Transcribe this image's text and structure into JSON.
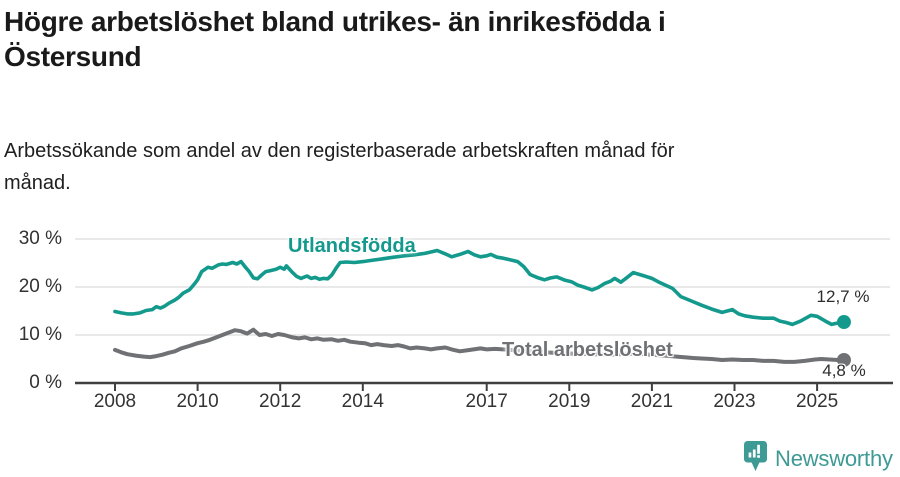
{
  "header": {
    "title": "Högre arbetslöshet bland utrikes- än inrikesfödda i Östersund",
    "subtitle": "Arbetssökande som andel av den registerbaserade arbetskraften månad för månad."
  },
  "chart_data": {
    "type": "line",
    "title": "Högre arbetslöshet bland utrikes- än inrikesfödda i Östersund",
    "subtitle": "Arbetssökande som andel av den registerbaserade arbetskraften månad för månad.",
    "xlabel": "",
    "ylabel": "",
    "unit": "%",
    "grid": true,
    "legend_position": "inline-labels",
    "x_axis": {
      "ticks": [
        2008,
        2010,
        2012,
        2014,
        2017,
        2019,
        2021,
        2023,
        2025
      ]
    },
    "y_axis": {
      "ticks": [
        0,
        10,
        20,
        30
      ],
      "suffix": " %",
      "range": [
        0,
        30
      ]
    },
    "colors": {
      "axis": "#3f3f3f",
      "grid": "#dcdcdc",
      "tick_text": "#333333"
    },
    "series": [
      {
        "name": "Utlandsfödda",
        "color": "#149a8d",
        "end_label": "12,7 %",
        "end_value": 12.7,
        "points": [
          [
            2008.0,
            14.9
          ],
          [
            2008.15,
            14.6
          ],
          [
            2008.3,
            14.4
          ],
          [
            2008.45,
            14.4
          ],
          [
            2008.6,
            14.6
          ],
          [
            2008.75,
            15.1
          ],
          [
            2008.9,
            15.3
          ],
          [
            2009.0,
            15.9
          ],
          [
            2009.1,
            15.6
          ],
          [
            2009.2,
            16.0
          ],
          [
            2009.3,
            16.6
          ],
          [
            2009.45,
            17.3
          ],
          [
            2009.55,
            17.9
          ],
          [
            2009.65,
            18.7
          ],
          [
            2009.8,
            19.4
          ],
          [
            2009.9,
            20.4
          ],
          [
            2010.0,
            21.5
          ],
          [
            2010.1,
            23.2
          ],
          [
            2010.25,
            24.1
          ],
          [
            2010.35,
            23.9
          ],
          [
            2010.5,
            24.6
          ],
          [
            2010.6,
            24.8
          ],
          [
            2010.7,
            24.7
          ],
          [
            2010.85,
            25.1
          ],
          [
            2010.95,
            24.8
          ],
          [
            2011.05,
            25.3
          ],
          [
            2011.15,
            24.2
          ],
          [
            2011.25,
            23.2
          ],
          [
            2011.35,
            21.9
          ],
          [
            2011.45,
            21.7
          ],
          [
            2011.55,
            22.5
          ],
          [
            2011.65,
            23.2
          ],
          [
            2011.75,
            23.4
          ],
          [
            2011.9,
            23.7
          ],
          [
            2012.0,
            24.1
          ],
          [
            2012.1,
            23.7
          ],
          [
            2012.15,
            24.4
          ],
          [
            2012.3,
            23.0
          ],
          [
            2012.4,
            22.2
          ],
          [
            2012.5,
            21.8
          ],
          [
            2012.65,
            22.3
          ],
          [
            2012.75,
            21.8
          ],
          [
            2012.85,
            22.0
          ],
          [
            2012.95,
            21.6
          ],
          [
            2013.05,
            21.8
          ],
          [
            2013.15,
            21.7
          ],
          [
            2013.25,
            22.5
          ],
          [
            2013.35,
            23.9
          ],
          [
            2013.45,
            25.1
          ],
          [
            2013.6,
            25.2
          ],
          [
            2013.8,
            25.1
          ],
          [
            2014.0,
            25.3
          ],
          [
            2014.25,
            25.6
          ],
          [
            2014.5,
            25.9
          ],
          [
            2014.75,
            26.2
          ],
          [
            2015.0,
            26.5
          ],
          [
            2015.25,
            26.7
          ],
          [
            2015.5,
            27.0
          ],
          [
            2015.7,
            27.4
          ],
          [
            2015.8,
            27.6
          ],
          [
            2016.0,
            26.9
          ],
          [
            2016.15,
            26.3
          ],
          [
            2016.35,
            26.8
          ],
          [
            2016.55,
            27.4
          ],
          [
            2016.7,
            26.7
          ],
          [
            2016.85,
            26.3
          ],
          [
            2017.0,
            26.5
          ],
          [
            2017.1,
            26.8
          ],
          [
            2017.25,
            26.2
          ],
          [
            2017.4,
            26.0
          ],
          [
            2017.6,
            25.6
          ],
          [
            2017.75,
            25.3
          ],
          [
            2017.9,
            24.2
          ],
          [
            2018.05,
            22.6
          ],
          [
            2018.25,
            21.9
          ],
          [
            2018.4,
            21.5
          ],
          [
            2018.55,
            21.9
          ],
          [
            2018.7,
            22.1
          ],
          [
            2018.9,
            21.4
          ],
          [
            2019.05,
            21.1
          ],
          [
            2019.2,
            20.4
          ],
          [
            2019.35,
            20.0
          ],
          [
            2019.55,
            19.4
          ],
          [
            2019.7,
            19.9
          ],
          [
            2019.85,
            20.7
          ],
          [
            2020.0,
            21.2
          ],
          [
            2020.1,
            21.8
          ],
          [
            2020.25,
            21.0
          ],
          [
            2020.4,
            22.0
          ],
          [
            2020.55,
            23.0
          ],
          [
            2020.7,
            22.6
          ],
          [
            2020.85,
            22.2
          ],
          [
            2021.0,
            21.8
          ],
          [
            2021.15,
            21.1
          ],
          [
            2021.3,
            20.5
          ],
          [
            2021.5,
            19.7
          ],
          [
            2021.7,
            18.0
          ],
          [
            2021.95,
            17.1
          ],
          [
            2022.2,
            16.2
          ],
          [
            2022.45,
            15.4
          ],
          [
            2022.7,
            14.7
          ],
          [
            2022.95,
            15.3
          ],
          [
            2023.1,
            14.4
          ],
          [
            2023.25,
            14.0
          ],
          [
            2023.45,
            13.7
          ],
          [
            2023.7,
            13.5
          ],
          [
            2023.95,
            13.5
          ],
          [
            2024.1,
            12.9
          ],
          [
            2024.25,
            12.6
          ],
          [
            2024.4,
            12.2
          ],
          [
            2024.6,
            12.9
          ],
          [
            2024.85,
            14.1
          ],
          [
            2025.0,
            13.9
          ],
          [
            2025.2,
            12.9
          ],
          [
            2025.35,
            12.2
          ],
          [
            2025.5,
            12.5
          ],
          [
            2025.65,
            12.7
          ]
        ]
      },
      {
        "name": "Total arbetslöshet",
        "color": "#707175",
        "end_label": "4,8 %",
        "end_value": 4.8,
        "points": [
          [
            2008.0,
            6.9
          ],
          [
            2008.15,
            6.4
          ],
          [
            2008.3,
            6.0
          ],
          [
            2008.5,
            5.7
          ],
          [
            2008.7,
            5.5
          ],
          [
            2008.85,
            5.4
          ],
          [
            2009.0,
            5.6
          ],
          [
            2009.15,
            5.9
          ],
          [
            2009.3,
            6.3
          ],
          [
            2009.45,
            6.6
          ],
          [
            2009.6,
            7.2
          ],
          [
            2009.8,
            7.7
          ],
          [
            2010.0,
            8.3
          ],
          [
            2010.15,
            8.6
          ],
          [
            2010.3,
            9.0
          ],
          [
            2010.45,
            9.5
          ],
          [
            2010.6,
            10.0
          ],
          [
            2010.75,
            10.5
          ],
          [
            2010.9,
            11.0
          ],
          [
            2011.05,
            10.8
          ],
          [
            2011.2,
            10.3
          ],
          [
            2011.35,
            11.1
          ],
          [
            2011.5,
            10.0
          ],
          [
            2011.65,
            10.2
          ],
          [
            2011.8,
            9.8
          ],
          [
            2011.95,
            10.2
          ],
          [
            2012.1,
            10.0
          ],
          [
            2012.3,
            9.5
          ],
          [
            2012.45,
            9.3
          ],
          [
            2012.6,
            9.5
          ],
          [
            2012.75,
            9.1
          ],
          [
            2012.9,
            9.3
          ],
          [
            2013.05,
            9.0
          ],
          [
            2013.25,
            9.1
          ],
          [
            2013.4,
            8.8
          ],
          [
            2013.55,
            9.0
          ],
          [
            2013.7,
            8.6
          ],
          [
            2013.9,
            8.4
          ],
          [
            2014.05,
            8.3
          ],
          [
            2014.2,
            7.9
          ],
          [
            2014.35,
            8.1
          ],
          [
            2014.5,
            7.9
          ],
          [
            2014.7,
            7.7
          ],
          [
            2014.85,
            7.9
          ],
          [
            2015.0,
            7.6
          ],
          [
            2015.15,
            7.2
          ],
          [
            2015.3,
            7.4
          ],
          [
            2015.5,
            7.2
          ],
          [
            2015.65,
            7.0
          ],
          [
            2015.8,
            7.2
          ],
          [
            2016.0,
            7.4
          ],
          [
            2016.15,
            7.0
          ],
          [
            2016.35,
            6.6
          ],
          [
            2016.6,
            6.9
          ],
          [
            2016.85,
            7.2
          ],
          [
            2017.0,
            7.0
          ],
          [
            2017.2,
            7.1
          ],
          [
            2017.4,
            7.0
          ],
          [
            2017.7,
            6.8
          ],
          [
            2018.0,
            6.6
          ],
          [
            2018.4,
            6.4
          ],
          [
            2018.8,
            6.2
          ],
          [
            2019.2,
            6.1
          ],
          [
            2019.6,
            6.0
          ],
          [
            2020.0,
            5.9
          ],
          [
            2020.4,
            6.1
          ],
          [
            2020.8,
            6.0
          ],
          [
            2021.2,
            5.8
          ],
          [
            2021.6,
            5.5
          ],
          [
            2022.0,
            5.2
          ],
          [
            2022.2,
            5.1
          ],
          [
            2022.45,
            5.0
          ],
          [
            2022.7,
            4.8
          ],
          [
            2022.95,
            4.9
          ],
          [
            2023.2,
            4.8
          ],
          [
            2023.45,
            4.8
          ],
          [
            2023.7,
            4.6
          ],
          [
            2023.95,
            4.6
          ],
          [
            2024.2,
            4.4
          ],
          [
            2024.45,
            4.4
          ],
          [
            2024.7,
            4.6
          ],
          [
            2024.95,
            4.9
          ],
          [
            2025.1,
            5.0
          ],
          [
            2025.3,
            4.9
          ],
          [
            2025.5,
            4.8
          ],
          [
            2025.65,
            4.8
          ]
        ]
      }
    ]
  },
  "footer": {
    "logo_text": "Newsworthy",
    "logo_color": "#3d9a94"
  }
}
